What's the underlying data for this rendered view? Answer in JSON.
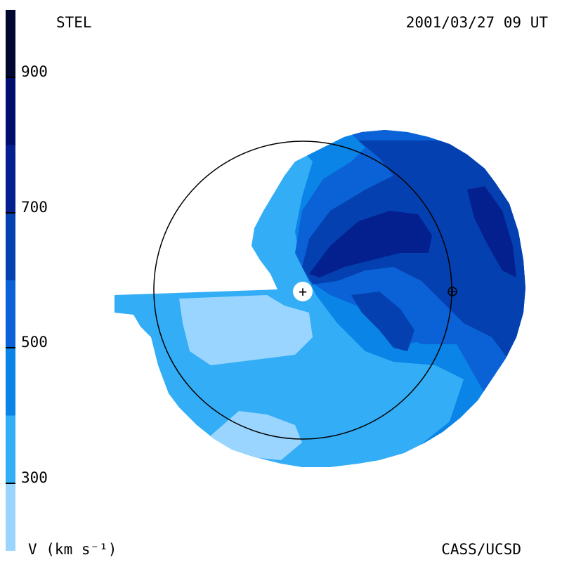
{
  "header": {
    "station": "STEL",
    "datetime": "2001/03/27 09 UT"
  },
  "footer": {
    "units": "V (km s⁻¹)",
    "credit": "CASS/UCSD"
  },
  "colorbar": {
    "ticks": [
      {
        "value": 900,
        "label": "900"
      },
      {
        "value": 700,
        "label": "700"
      },
      {
        "value": 500,
        "label": "500"
      },
      {
        "value": 300,
        "label": "300"
      }
    ],
    "range": [
      200,
      1000
    ],
    "bands": [
      {
        "from": 200,
        "to": 300,
        "color": "#99d5ff"
      },
      {
        "from": 300,
        "to": 400,
        "color": "#33adf5"
      },
      {
        "from": 400,
        "to": 500,
        "color": "#0a84e6"
      },
      {
        "from": 500,
        "to": 600,
        "color": "#0a62d6"
      },
      {
        "from": 600,
        "to": 700,
        "color": "#0540b0"
      },
      {
        "from": 700,
        "to": 800,
        "color": "#03208e"
      },
      {
        "from": 800,
        "to": 900,
        "color": "#000e6e"
      },
      {
        "from": 900,
        "to": 1000,
        "color": "#000830"
      }
    ]
  },
  "markers": {
    "sun_symbol": "+",
    "earth_symbol": "earth-orbit-marker"
  }
}
